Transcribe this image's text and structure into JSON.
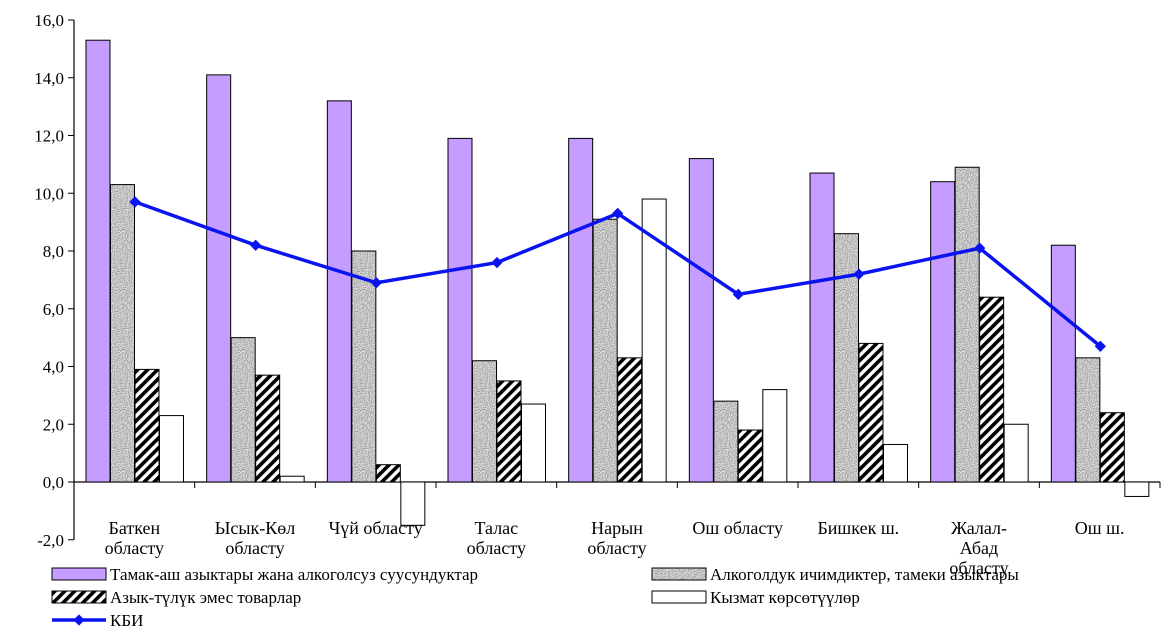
{
  "chart_data": {
    "type": "bar",
    "categories": [
      [
        "Баткен",
        "областу"
      ],
      [
        "Ысык-Көл",
        "областу"
      ],
      [
        "Чүй областу"
      ],
      [
        "Талас",
        "областу"
      ],
      [
        "Нарын",
        "областу"
      ],
      [
        "Ош областу"
      ],
      [
        "Бишкек ш."
      ],
      [
        "Жалал-",
        "Абад",
        "областу"
      ],
      [
        "Ош ш."
      ]
    ],
    "series": [
      {
        "name": "Тамак-аш азыктары жана алкоголсуз суусундуктар",
        "style": "solid",
        "color": "#c59cff",
        "values": [
          15.3,
          14.1,
          13.2,
          11.9,
          11.9,
          11.2,
          10.7,
          10.4,
          8.2
        ]
      },
      {
        "name": "Алкоголдук ичимдиктер, тамеки азыктары",
        "style": "granite",
        "color": "#9a9a9a",
        "values": [
          10.3,
          5.0,
          8.0,
          4.2,
          9.1,
          2.8,
          8.6,
          10.9,
          4.3
        ]
      },
      {
        "name": "Азык-түлүк эмес товарлар",
        "style": "diagonal",
        "color": "#000000",
        "values": [
          3.9,
          3.7,
          0.6,
          3.5,
          4.3,
          1.8,
          4.8,
          6.4,
          2.4
        ]
      },
      {
        "name": "Кызмат көрсөтүүлөр",
        "style": "white",
        "color": "#ffffff",
        "values": [
          2.3,
          0.2,
          -1.5,
          2.7,
          9.8,
          3.2,
          1.3,
          2.0,
          -0.5
        ]
      }
    ],
    "line": {
      "name": "КБИ",
      "color": "#0a14f0",
      "values": [
        9.7,
        8.2,
        6.9,
        7.6,
        9.3,
        6.5,
        7.2,
        8.1,
        4.7
      ]
    },
    "yticks": [
      "16,0",
      "14,0",
      "12,0",
      "10,0",
      "8,0",
      "6,0",
      "4,0",
      "2,0",
      "0,0",
      "-2,0"
    ],
    "ylim": [
      -2,
      16
    ],
    "grid": false,
    "legend_position": "bottom"
  }
}
